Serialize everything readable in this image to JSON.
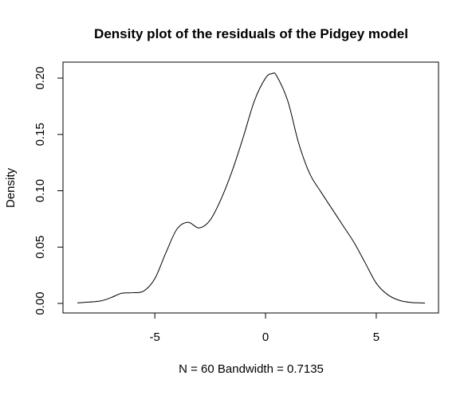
{
  "chart_data": {
    "type": "line",
    "title": "Density plot of the residuals of the Pidgey model",
    "xlabel": "N = 60   Bandwidth = 0.7135",
    "ylabel": "Density",
    "xlim": [
      -8.5,
      7.2
    ],
    "ylim": [
      0,
      0.205
    ],
    "x_ticks": [
      -5,
      0,
      5
    ],
    "x_tick_labels": [
      "-5",
      "0",
      "5"
    ],
    "y_ticks": [
      0.0,
      0.05,
      0.1,
      0.15,
      0.2
    ],
    "y_tick_labels": [
      "0.00",
      "0.05",
      "0.10",
      "0.15",
      "0.20"
    ],
    "grid": false,
    "series": [
      {
        "x": [
          -8.5,
          -7.5,
          -7.0,
          -6.5,
          -6.0,
          -5.5,
          -5.0,
          -4.5,
          -4.0,
          -3.5,
          -3.0,
          -2.5,
          -2.0,
          -1.5,
          -1.0,
          -0.5,
          0.0,
          0.3,
          0.5,
          1.0,
          1.5,
          2.0,
          2.5,
          3.0,
          3.5,
          4.0,
          4.5,
          5.0,
          5.5,
          6.0,
          6.5,
          7.2
        ],
        "values": [
          0.0005,
          0.002,
          0.005,
          0.009,
          0.0095,
          0.011,
          0.022,
          0.045,
          0.066,
          0.072,
          0.067,
          0.074,
          0.093,
          0.118,
          0.148,
          0.18,
          0.2,
          0.204,
          0.202,
          0.18,
          0.142,
          0.115,
          0.099,
          0.084,
          0.069,
          0.054,
          0.036,
          0.018,
          0.008,
          0.003,
          0.001,
          0.0003
        ]
      }
    ]
  }
}
